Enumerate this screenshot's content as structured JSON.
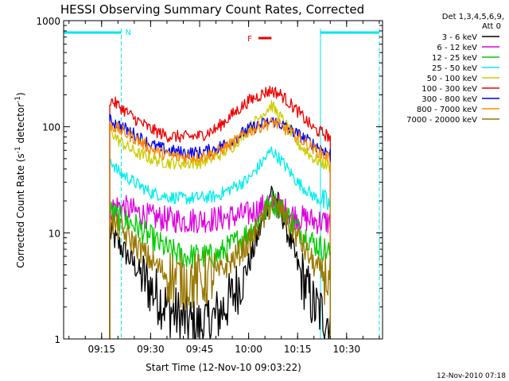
{
  "chart_data": {
    "type": "line",
    "title": "HESSI Observing Summary Count Rates, Corrected",
    "xlabel": "Start Time (12-Nov-10 09:03:22)",
    "ylabel": "Corrected Count Rate (s⁻¹ detector⁻¹)",
    "ylabel_parts": [
      "Corrected Count Rate (s",
      "-1",
      " detector",
      "-1",
      ")"
    ],
    "y_scale": "log",
    "xlim": [
      "09:03:22",
      "10:41:00"
    ],
    "ylim": [
      1,
      1000
    ],
    "x_ticks": [
      "09:15",
      "09:30",
      "09:45",
      "10:00",
      "10:15",
      "10:30"
    ],
    "y_ticks": [
      "1",
      "10",
      "100",
      "1000"
    ],
    "grid": false,
    "legend_position": "top-right, outside plot",
    "legend_header": [
      "Det 1,3,4,5,6,9,",
      "Att 0"
    ],
    "footer_date": "12-Nov-2010 07:18",
    "annotations": {
      "night_marker": "N",
      "flare_marker": "F"
    },
    "night_intervals": [
      {
        "start": "09:03:22",
        "end": "09:21:00"
      },
      {
        "start": "10:22:00",
        "end": "10:40:00"
      }
    ],
    "flare_interval": {
      "start": "10:03:00",
      "end": "10:07:00"
    },
    "data_gap_lines": [
      "09:21:00",
      "10:40:00"
    ],
    "day_start": "10:22:00",
    "series": [
      {
        "name": "3 - 6 keV",
        "color": "#000000",
        "x": [
          "09:17:30",
          "09:20:00",
          "09:25:00",
          "09:30:00",
          "09:35:00",
          "09:40:00",
          "09:45:00",
          "09:50:00",
          "09:55:00",
          "10:00:00",
          "10:04:00",
          "10:07:00",
          "10:10:00",
          "10:15:00",
          "10:20:00",
          "10:25:00"
        ],
        "y": [
          10,
          8,
          5,
          3,
          2,
          1.5,
          1.3,
          1.6,
          2.5,
          5,
          12,
          26,
          16,
          5,
          2,
          1.5
        ]
      },
      {
        "name": "6 - 12 keV",
        "color": "#dd00dd",
        "x": [
          "09:17:30",
          "09:20:00",
          "09:25:00",
          "09:30:00",
          "09:40:00",
          "09:50:00",
          "10:00:00",
          "10:05:00",
          "10:07:00",
          "10:10:00",
          "10:15:00",
          "10:20:00",
          "10:25:00"
        ],
        "y": [
          17,
          18,
          16,
          14,
          13,
          13.5,
          15,
          18,
          20,
          17,
          14,
          13,
          12.5
        ]
      },
      {
        "name": "12 - 25 keV",
        "color": "#00cc00",
        "x": [
          "09:17:30",
          "09:20:00",
          "09:25:00",
          "09:30:00",
          "09:35:00",
          "09:40:00",
          "09:50:00",
          "10:00:00",
          "10:05:00",
          "10:07:00",
          "10:10:00",
          "10:15:00",
          "10:20:00",
          "10:25:00"
        ],
        "y": [
          16,
          14,
          12,
          9,
          7,
          6,
          6,
          10,
          16,
          20,
          17,
          11,
          8,
          6.5
        ]
      },
      {
        "name": "25 - 50 keV",
        "color": "#00eeee",
        "x": [
          "09:17:30",
          "09:20:00",
          "09:25:00",
          "09:30:00",
          "09:35:00",
          "09:40:00",
          "09:50:00",
          "10:00:00",
          "10:05:00",
          "10:07:00",
          "10:10:00",
          "10:15:00",
          "10:20:00",
          "10:25:00"
        ],
        "y": [
          50,
          38,
          30,
          24,
          22,
          21,
          22,
          32,
          50,
          60,
          48,
          30,
          22,
          18
        ]
      },
      {
        "name": "50 - 100 keV",
        "color": "#cccc00",
        "x": [
          "09:17:30",
          "09:20:00",
          "09:25:00",
          "09:30:00",
          "09:35:00",
          "09:40:00",
          "09:45:00",
          "09:50:00",
          "09:55:00",
          "10:00:00",
          "10:05:00",
          "10:07:00",
          "10:10:00",
          "10:15:00",
          "10:20:00",
          "10:25:00"
        ],
        "y": [
          95,
          75,
          58,
          50,
          46,
          45,
          46,
          52,
          65,
          95,
          140,
          160,
          120,
          70,
          50,
          42
        ]
      },
      {
        "name": "100 - 300 keV",
        "color": "#ee0000",
        "x": [
          "09:17:30",
          "09:20:00",
          "09:25:00",
          "09:30:00",
          "09:35:00",
          "09:40:00",
          "09:45:00",
          "09:50:00",
          "09:55:00",
          "10:00:00",
          "10:05:00",
          "10:07:00",
          "10:10:00",
          "10:15:00",
          "10:20:00",
          "10:25:00"
        ],
        "y": [
          180,
          160,
          120,
          95,
          82,
          80,
          82,
          95,
          130,
          175,
          210,
          220,
          200,
          140,
          95,
          80
        ]
      },
      {
        "name": "300 - 800 keV",
        "color": "#0000ee",
        "x": [
          "09:17:30",
          "09:20:00",
          "09:25:00",
          "09:30:00",
          "09:35:00",
          "09:40:00",
          "09:45:00",
          "09:50:00",
          "09:55:00",
          "10:00:00",
          "10:05:00",
          "10:08:00",
          "10:10:00",
          "10:15:00",
          "10:20:00",
          "10:25:00"
        ],
        "y": [
          115,
          105,
          85,
          68,
          60,
          57,
          57,
          62,
          75,
          95,
          108,
          112,
          105,
          85,
          68,
          56
        ]
      },
      {
        "name": "800 - 7000 keV",
        "color": "#ff8800",
        "x": [
          "09:17:30",
          "09:20:00",
          "09:25:00",
          "09:30:00",
          "09:35:00",
          "09:40:00",
          "09:45:00",
          "09:50:00",
          "09:55:00",
          "10:00:00",
          "10:05:00",
          "10:08:00",
          "10:10:00",
          "10:15:00",
          "10:20:00",
          "10:25:00"
        ],
        "y": [
          105,
          95,
          78,
          62,
          54,
          52,
          52,
          57,
          70,
          90,
          105,
          110,
          100,
          80,
          62,
          50
        ]
      },
      {
        "name": "7000 - 20000 keV",
        "color": "#997700",
        "x": [
          "09:17:30",
          "09:20:00",
          "09:25:00",
          "09:30:00",
          "09:35:00",
          "09:40:00",
          "09:45:00",
          "09:50:00",
          "09:55:00",
          "10:00:00",
          "10:05:00",
          "10:07:00",
          "10:10:00",
          "10:15:00",
          "10:20:00",
          "10:25:00"
        ],
        "y": [
          13,
          11,
          8,
          5.5,
          4,
          3.5,
          3.5,
          4,
          5.5,
          8,
          14,
          19,
          16,
          9,
          5,
          3.5
        ]
      }
    ]
  }
}
